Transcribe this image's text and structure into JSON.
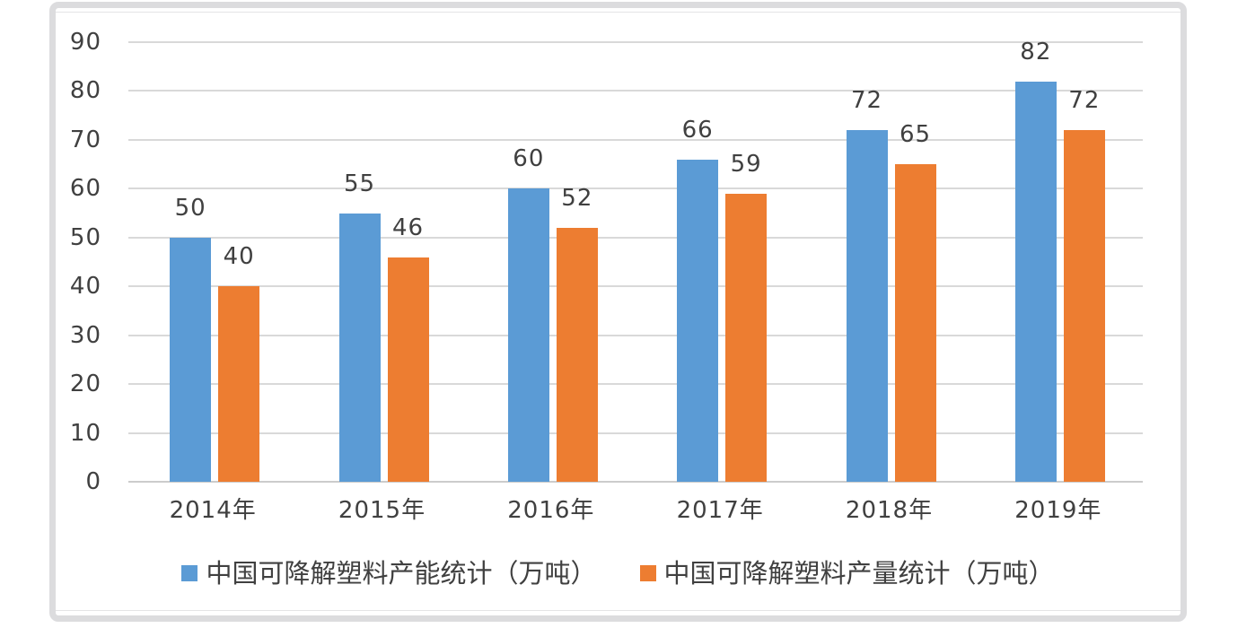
{
  "chart_data": {
    "type": "bar",
    "title": "",
    "categories": [
      "2014年",
      "2015年",
      "2016年",
      "2017年",
      "2018年",
      "2019年"
    ],
    "series": [
      {
        "name": "中国可降解塑料产能统计（万吨）",
        "color": "#5B9BD5",
        "values": [
          50,
          55,
          60,
          66,
          72,
          82
        ]
      },
      {
        "name": "中国可降解塑料产量统计（万吨）",
        "color": "#ED7D31",
        "values": [
          40,
          46,
          52,
          59,
          65,
          72
        ]
      }
    ],
    "y_axis": {
      "min": 0,
      "max": 90,
      "step": 10,
      "ticks": [
        "0",
        "10",
        "20",
        "30",
        "40",
        "50",
        "60",
        "70",
        "80",
        "90"
      ]
    },
    "x_axis": {
      "ticks": [
        "2014年",
        "2015年",
        "2016年",
        "2017年",
        "2018年",
        "2019年"
      ]
    },
    "grid": true,
    "data_labels": true,
    "legend_position": "bottom",
    "colors": {
      "series_capacity": "#5B9BD5",
      "series_output": "#ED7D31",
      "gridline": "#D9D9D9",
      "axis_line": "#CCCCCC",
      "text": "#404040",
      "frame_border": "#DCDCDE",
      "background": "#FFFFFF"
    }
  }
}
